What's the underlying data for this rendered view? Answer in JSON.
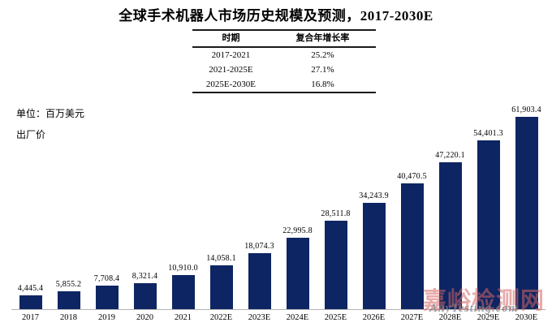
{
  "chart_data": {
    "type": "bar",
    "title": "全球手术机器人市场历史规模及预测，2017-2030E",
    "unit": "单位：百万美元",
    "price_basis": "出厂价",
    "categories": [
      "2017",
      "2018",
      "2019",
      "2020",
      "2021",
      "2022E",
      "2023E",
      "2024E",
      "2025E",
      "2026E",
      "2027E",
      "2028E",
      "2029E",
      "2030E"
    ],
    "values": [
      4445.4,
      5855.2,
      7708.4,
      8321.4,
      10910.0,
      14058.1,
      18074.3,
      22995.8,
      28511.8,
      34243.9,
      40470.5,
      47220.1,
      54401.3,
      61903.4
    ],
    "value_labels": [
      "4,445.4",
      "5,855.2",
      "7,708.4",
      "8,321.4",
      "10,910.0",
      "14,058.1",
      "18,074.3",
      "22,995.8",
      "28,511.8",
      "34,243.9",
      "40,470.5",
      "47,220.1",
      "54,401.3",
      "61,903.4"
    ],
    "ylim": [
      0,
      61903.4
    ],
    "grid": false,
    "legend": "none"
  },
  "cagr_table": {
    "headers": {
      "period": "时期",
      "rate": "复合年增长率"
    },
    "rows": [
      {
        "period": "2017-2021",
        "rate": "25.2%"
      },
      {
        "period": "2021-2025E",
        "rate": "27.1%"
      },
      {
        "period": "2025E-2030E",
        "rate": "16.8%"
      }
    ]
  },
  "watermark": {
    "line1": "嘉峪检测网",
    "line2": "AnyTesting.com"
  },
  "colors": {
    "bar": "#0d2562",
    "axis": "#b3b3b3",
    "text": "#000000",
    "watermark_red": "rgba(214,100,100,0.55)",
    "watermark_gray": "rgba(125,132,140,0.75)"
  }
}
